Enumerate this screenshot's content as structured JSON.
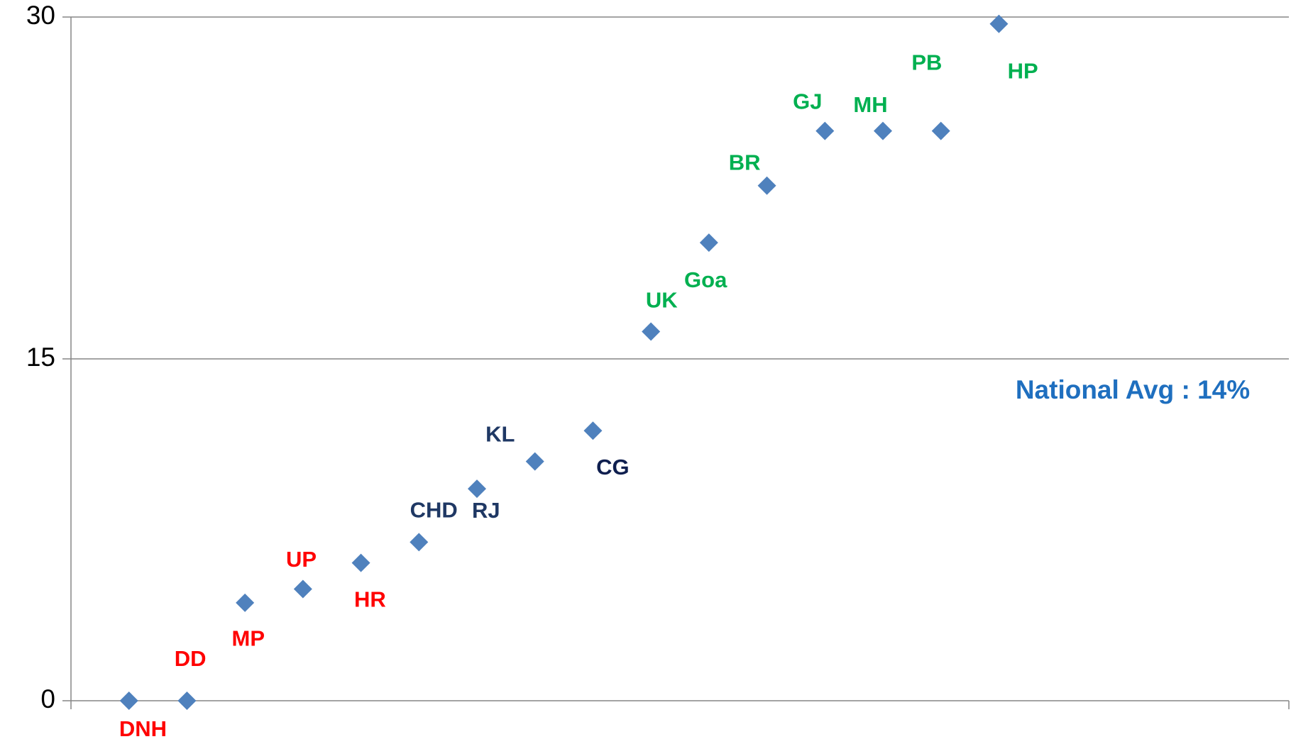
{
  "chart_data": {
    "type": "scatter",
    "annotation": "National Avg : 14%",
    "labels": [
      "DNH",
      "DD",
      "MP",
      "UP",
      "HR",
      "CHD",
      "RJ",
      "KL",
      "CG",
      "UK",
      "Goa",
      "BR",
      "GJ",
      "MH",
      "PB",
      "HP"
    ],
    "label_colors": [
      "#ff0000",
      "#ff0000",
      "#ff0000",
      "#ff0000",
      "#ff0000",
      "#1f3864",
      "#1f3864",
      "#1f3864",
      "#0f1f4f",
      "#00b050",
      "#00b050",
      "#00b050",
      "#00b050",
      "#00b050",
      "#00b050",
      "#00b050"
    ],
    "x": [
      1,
      2,
      3,
      4,
      5,
      6,
      7,
      8,
      9,
      10,
      11,
      12,
      13,
      14,
      15,
      16
    ],
    "values": [
      0,
      0,
      4.3,
      4.9,
      6.05,
      6.96,
      9.3,
      10.5,
      11.85,
      16.2,
      20.1,
      22.6,
      25.0,
      25.0,
      25.0,
      29.7
    ],
    "color": "#4f81bd",
    "xlim": [
      0,
      21
    ],
    "ylim": [
      0,
      30
    ],
    "yticks": [
      0,
      15,
      30
    ],
    "grid": true
  }
}
